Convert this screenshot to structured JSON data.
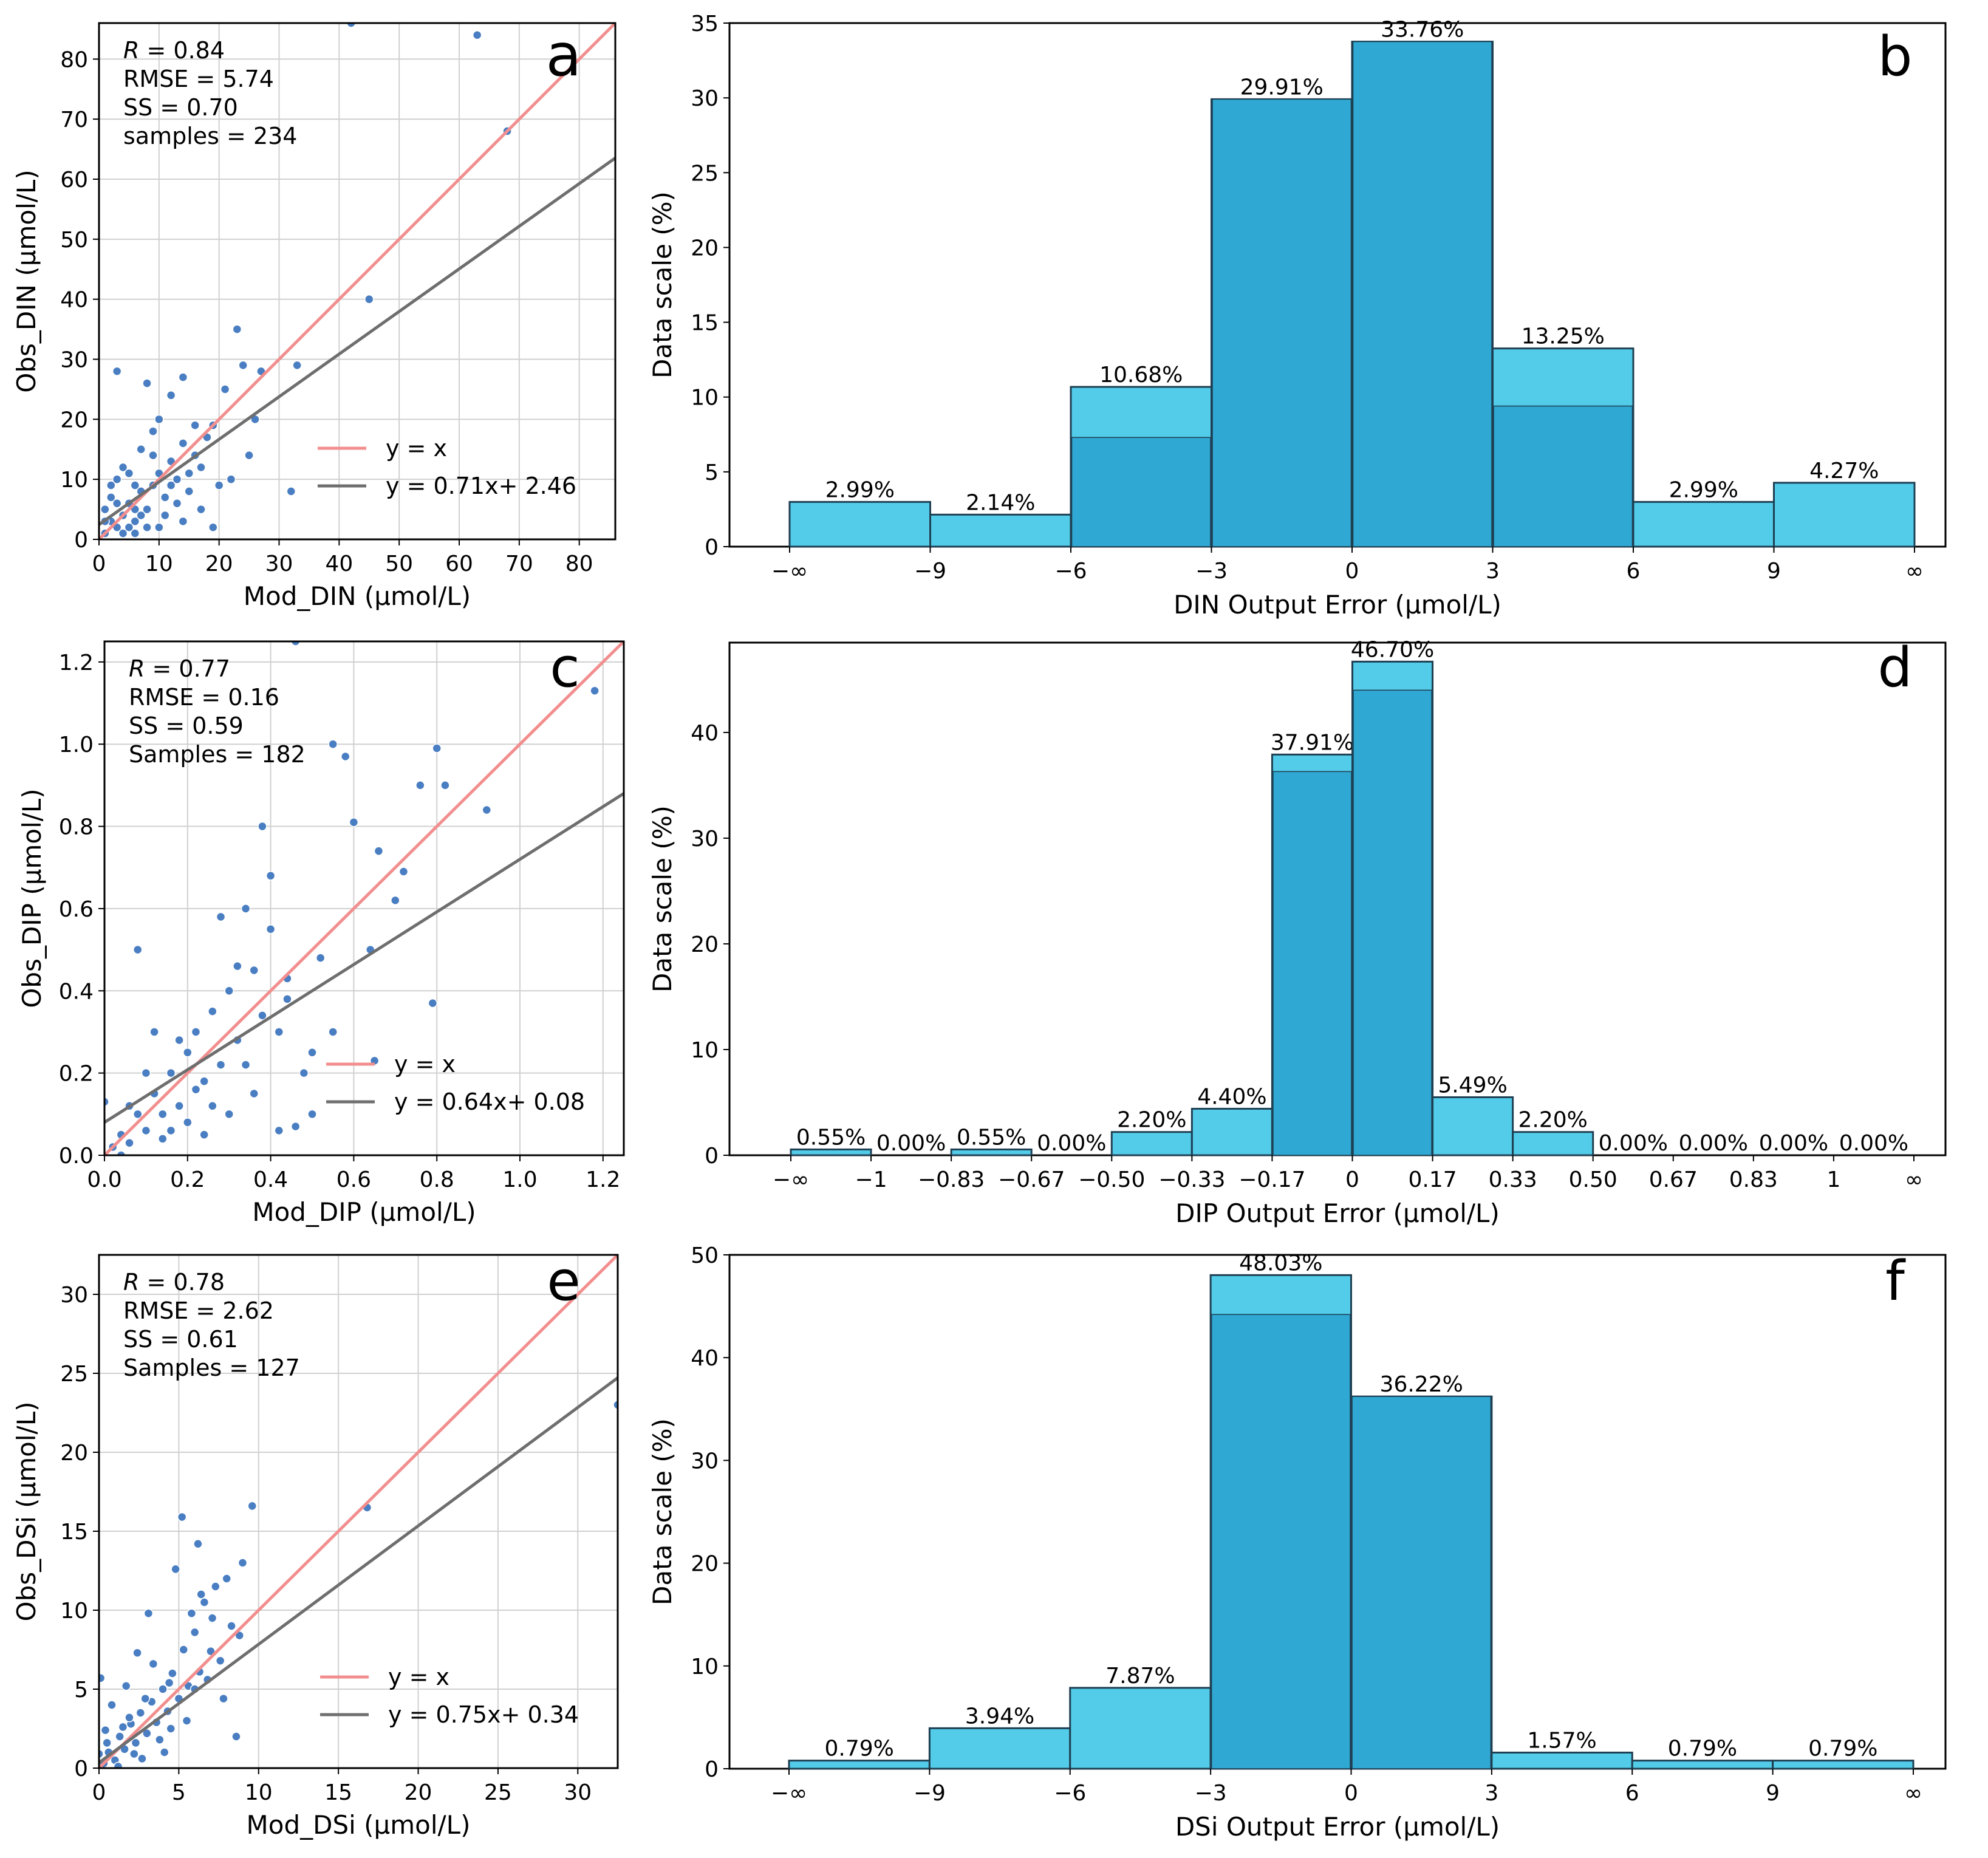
{
  "colors": {
    "scatter_point": "#4a7ec2",
    "identity_line": "#f28e8e",
    "fit_line": "#6e6e6e",
    "hist_fill": "#52cce9",
    "hist_fill_dark": "#2fa8d3",
    "hist_edge": "#1f3f52",
    "grid": "#d0d0d0"
  },
  "chart_data": [
    {
      "panel": "a",
      "type": "scatter",
      "xlabel": "Mod_DIN (μmol/L)",
      "ylabel": "Obs_DIN (μmol/L)",
      "xlim": [
        0,
        86
      ],
      "ylim": [
        0,
        86
      ],
      "xticks": [
        "0",
        "10",
        "20",
        "30",
        "40",
        "50",
        "60",
        "70",
        "80"
      ],
      "yticks": [
        "0",
        "10",
        "20",
        "30",
        "40",
        "50",
        "60",
        "70",
        "80"
      ],
      "stats": [
        "R = 0.84",
        "RMSE = 5.74",
        "SS = 0.70",
        "samples = 234"
      ],
      "legend": [
        "y = x",
        "y = 0.71x+ 2.46"
      ],
      "fit": {
        "slope": 0.71,
        "intercept": 2.46
      },
      "points": [
        [
          1,
          1
        ],
        [
          2,
          3
        ],
        [
          3,
          2
        ],
        [
          1,
          5
        ],
        [
          4,
          4
        ],
        [
          5,
          6
        ],
        [
          2,
          7
        ],
        [
          6,
          3
        ],
        [
          7,
          8
        ],
        [
          3,
          10
        ],
        [
          8,
          5
        ],
        [
          4,
          12
        ],
        [
          9,
          9
        ],
        [
          10,
          11
        ],
        [
          5,
          2
        ],
        [
          6,
          9
        ],
        [
          11,
          7
        ],
        [
          12,
          13
        ],
        [
          7,
          15
        ],
        [
          13,
          10
        ],
        [
          14,
          16
        ],
        [
          9,
          18
        ],
        [
          15,
          8
        ],
        [
          16,
          14
        ],
        [
          10,
          20
        ],
        [
          17,
          12
        ],
        [
          18,
          17
        ],
        [
          12,
          24
        ],
        [
          19,
          19
        ],
        [
          20,
          9
        ],
        [
          3,
          28
        ],
        [
          8,
          26
        ],
        [
          14,
          27
        ],
        [
          21,
          25
        ],
        [
          23,
          35
        ],
        [
          24,
          29
        ],
        [
          26,
          20
        ],
        [
          27,
          28
        ],
        [
          32,
          8
        ],
        [
          33,
          29
        ],
        [
          45,
          40
        ],
        [
          63,
          84
        ],
        [
          68,
          68
        ],
        [
          42,
          86
        ],
        [
          19,
          2
        ],
        [
          2,
          9
        ],
        [
          5,
          11
        ],
        [
          6,
          5
        ],
        [
          8,
          2
        ],
        [
          9,
          14
        ],
        [
          11,
          4
        ],
        [
          13,
          6
        ],
        [
          15,
          11
        ],
        [
          16,
          19
        ],
        [
          17,
          5
        ],
        [
          22,
          10
        ],
        [
          25,
          14
        ],
        [
          4,
          1
        ],
        [
          6,
          1
        ],
        [
          10,
          2
        ],
        [
          1,
          3
        ],
        [
          3,
          6
        ],
        [
          7,
          4
        ],
        [
          12,
          9
        ],
        [
          14,
          3
        ]
      ],
      "fit_label": "y = 0.71x+ 2.46"
    },
    {
      "panel": "b",
      "type": "bar",
      "xlabel": "DIN Output Error (μmol/L)",
      "ylabel": "Data scale (%)",
      "ylim": [
        0,
        35
      ],
      "yticks": [
        "0",
        "5",
        "10",
        "15",
        "20",
        "25",
        "30",
        "35"
      ],
      "edge_labels": [
        "−∞",
        "−9",
        "−6",
        "−3",
        "0",
        "3",
        "6",
        "9",
        "∞"
      ],
      "values": [
        2.99,
        2.14,
        10.68,
        29.91,
        33.76,
        13.25,
        2.99,
        4.27
      ],
      "labels": [
        "2.99%",
        "2.14%",
        "10.68%",
        "29.91%",
        "33.76%",
        "13.25%",
        "2.99%",
        "4.27%"
      ],
      "dark_values": [
        0,
        0,
        7.3,
        29.91,
        33.76,
        9.4,
        0,
        0
      ]
    },
    {
      "panel": "c",
      "type": "scatter",
      "xlabel": "Mod_DIP (μmol/L)",
      "ylabel": "Obs_DIP (μmol/L)",
      "xlim": [
        0,
        1.25
      ],
      "ylim": [
        0,
        1.25
      ],
      "xticks": [
        "0.0",
        "0.2",
        "0.4",
        "0.6",
        "0.8",
        "1.0",
        "1.2"
      ],
      "yticks": [
        "0.0",
        "0.2",
        "0.4",
        "0.6",
        "0.8",
        "1.0",
        "1.2"
      ],
      "stats": [
        "R = 0.77",
        "RMSE = 0.16",
        "SS = 0.59",
        "Samples = 182"
      ],
      "legend": [
        "y = x",
        "y = 0.64x+ 0.08"
      ],
      "fit": {
        "slope": 0.64,
        "intercept": 0.08
      },
      "points": [
        [
          0.02,
          0.02
        ],
        [
          0.04,
          0.05
        ],
        [
          0.06,
          0.03
        ],
        [
          0.08,
          0.1
        ],
        [
          0.1,
          0.06
        ],
        [
          0.12,
          0.15
        ],
        [
          0.14,
          0.1
        ],
        [
          0.16,
          0.2
        ],
        [
          0.18,
          0.12
        ],
        [
          0.2,
          0.25
        ],
        [
          0.22,
          0.3
        ],
        [
          0.24,
          0.18
        ],
        [
          0.26,
          0.35
        ],
        [
          0.28,
          0.22
        ],
        [
          0.3,
          0.4
        ],
        [
          0.32,
          0.28
        ],
        [
          0.34,
          0.6
        ],
        [
          0.36,
          0.45
        ],
        [
          0.38,
          0.8
        ],
        [
          0.4,
          0.55
        ],
        [
          0.42,
          0.3
        ],
        [
          0.44,
          0.38
        ],
        [
          0.46,
          0.07
        ],
        [
          0.5,
          0.25
        ],
        [
          0.55,
          0.3
        ],
        [
          0.58,
          0.97
        ],
        [
          0.6,
          0.81
        ],
        [
          0.64,
          0.5
        ],
        [
          0.66,
          0.74
        ],
        [
          0.7,
          0.62
        ],
        [
          0.72,
          0.69
        ],
        [
          0.76,
          0.9
        ],
        [
          0.8,
          0.99
        ],
        [
          0.82,
          0.9
        ],
        [
          0.79,
          0.37
        ],
        [
          0.92,
          0.84
        ],
        [
          1.18,
          1.13
        ],
        [
          0.46,
          1.25
        ],
        [
          0.55,
          1.0
        ],
        [
          0.08,
          0.5
        ],
        [
          0.12,
          0.3
        ],
        [
          0.18,
          0.28
        ],
        [
          0.24,
          0.05
        ],
        [
          0.28,
          0.58
        ],
        [
          0.32,
          0.46
        ],
        [
          0.4,
          0.68
        ],
        [
          0.48,
          0.2
        ],
        [
          0.65,
          0.23
        ],
        [
          0.3,
          0.1
        ],
        [
          0.06,
          0.12
        ],
        [
          0.1,
          0.2
        ],
        [
          0.14,
          0.04
        ],
        [
          0.2,
          0.08
        ],
        [
          0.22,
          0.16
        ],
        [
          0.26,
          0.12
        ],
        [
          0.34,
          0.22
        ],
        [
          0.38,
          0.34
        ],
        [
          0.44,
          0.43
        ],
        [
          0.52,
          0.48
        ],
        [
          0.04,
          0.0
        ],
        [
          0.0,
          0.13
        ],
        [
          0.16,
          0.06
        ],
        [
          0.36,
          0.15
        ],
        [
          0.42,
          0.06
        ],
        [
          0.5,
          0.1
        ]
      ],
      "fit_label": "y = 0.64x+ 0.08"
    },
    {
      "panel": "d",
      "type": "bar",
      "xlabel": "DIP Output Error (μmol/L)",
      "ylabel": "Data scale (%)",
      "ylim": [
        0,
        48.5
      ],
      "yticks": [
        "0",
        "10",
        "20",
        "30",
        "40"
      ],
      "edge_labels": [
        "−∞",
        "−1",
        "−0.83",
        "−0.67",
        "−0.50",
        "−0.33",
        "−0.17",
        "0",
        "0.17",
        "0.33",
        "0.50",
        "0.67",
        "0.83",
        "1",
        "∞"
      ],
      "values": [
        0.55,
        0.0,
        0.55,
        0.0,
        2.2,
        4.4,
        37.91,
        46.7,
        5.49,
        2.2,
        0.0,
        0.0,
        0.0,
        0.0
      ],
      "labels": [
        "0.55%",
        "0.00%",
        "0.55%",
        "0.00%",
        "2.20%",
        "4.40%",
        "37.91%",
        "46.70%",
        "5.49%",
        "2.20%",
        "0.00%",
        "0.00%",
        "0.00%",
        "0.00%"
      ],
      "dark_values": [
        0,
        0,
        0,
        0,
        0,
        0,
        36.3,
        44.0,
        0,
        0,
        0,
        0,
        0,
        0
      ]
    },
    {
      "panel": "e",
      "type": "scatter",
      "xlabel": "Mod_DSi (μmol/L)",
      "ylabel": "Obs_DSi (μmol/L)",
      "xlim": [
        0,
        32.5
      ],
      "ylim": [
        0,
        32.5
      ],
      "xticks": [
        "0",
        "5",
        "10",
        "15",
        "20",
        "25",
        "30"
      ],
      "yticks": [
        "0",
        "5",
        "10",
        "15",
        "20",
        "25",
        "30"
      ],
      "stats": [
        "R = 0.78",
        "RMSE = 2.62",
        "SS = 0.61",
        "Samples = 127"
      ],
      "legend": [
        "y = x",
        "y = 0.75x+ 0.34"
      ],
      "fit": {
        "slope": 0.75,
        "intercept": 0.34
      },
      "points": [
        [
          0.3,
          0.3
        ],
        [
          0.6,
          1.0
        ],
        [
          1.0,
          0.5
        ],
        [
          1.3,
          2.0
        ],
        [
          1.6,
          1.2
        ],
        [
          2.0,
          2.8
        ],
        [
          2.3,
          1.6
        ],
        [
          2.6,
          3.5
        ],
        [
          3.0,
          2.2
        ],
        [
          3.3,
          4.2
        ],
        [
          3.6,
          2.9
        ],
        [
          4.0,
          5.0
        ],
        [
          4.3,
          3.6
        ],
        [
          4.6,
          6.0
        ],
        [
          5.0,
          4.4
        ],
        [
          5.3,
          7.5
        ],
        [
          5.6,
          5.2
        ],
        [
          6.0,
          8.6
        ],
        [
          6.3,
          6.1
        ],
        [
          6.6,
          10.5
        ],
        [
          7.0,
          7.4
        ],
        [
          7.3,
          11.5
        ],
        [
          7.6,
          6.8
        ],
        [
          8.0,
          12.0
        ],
        [
          8.3,
          9.0
        ],
        [
          8.6,
          2.0
        ],
        [
          9.0,
          13.0
        ],
        [
          9.6,
          16.6
        ],
        [
          5.2,
          15.9
        ],
        [
          6.2,
          14.2
        ],
        [
          3.1,
          9.8
        ],
        [
          4.8,
          12.6
        ],
        [
          2.4,
          7.3
        ],
        [
          1.7,
          5.2
        ],
        [
          16.8,
          16.5
        ],
        [
          32.5,
          23.0
        ],
        [
          0.1,
          5.7
        ],
        [
          0.8,
          4.0
        ],
        [
          1.2,
          0.1
        ],
        [
          2.7,
          0.6
        ],
        [
          3.8,
          1.8
        ],
        [
          4.5,
          2.5
        ],
        [
          5.5,
          3.0
        ],
        [
          6.8,
          5.6
        ],
        [
          7.8,
          4.4
        ],
        [
          8.8,
          8.4
        ],
        [
          0.4,
          2.4
        ],
        [
          1.9,
          3.2
        ],
        [
          2.2,
          0.9
        ],
        [
          3.4,
          6.6
        ],
        [
          4.1,
          1.0
        ],
        [
          5.8,
          9.8
        ],
        [
          6.4,
          11.0
        ],
        [
          7.1,
          9.5
        ],
        [
          0.0,
          0.9
        ],
        [
          0.5,
          1.6
        ],
        [
          1.5,
          2.6
        ],
        [
          2.9,
          4.4
        ],
        [
          4.4,
          5.4
        ],
        [
          6.0,
          5.0
        ]
      ],
      "fit_label": "y = 0.75x+ 0.34"
    },
    {
      "panel": "f",
      "type": "bar",
      "xlabel": "DSi Output Error (μmol/L)",
      "ylabel": "Data scale (%)",
      "ylim": [
        0,
        50
      ],
      "yticks": [
        "0",
        "10",
        "20",
        "30",
        "40",
        "50"
      ],
      "edge_labels": [
        "−∞",
        "−9",
        "−6",
        "−3",
        "0",
        "3",
        "6",
        "9",
        "∞"
      ],
      "values": [
        0.79,
        3.94,
        7.87,
        48.03,
        36.22,
        1.57,
        0.79,
        0.79
      ],
      "labels": [
        "0.79%",
        "3.94%",
        "7.87%",
        "48.03%",
        "36.22%",
        "1.57%",
        "0.79%",
        "0.79%"
      ],
      "dark_values": [
        0,
        0,
        0,
        44.2,
        36.22,
        0,
        0,
        0
      ]
    }
  ]
}
